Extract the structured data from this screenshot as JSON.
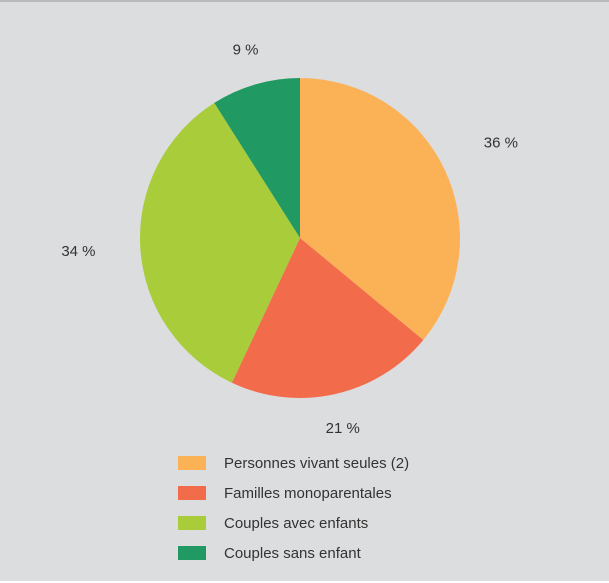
{
  "chart_data": {
    "type": "pie",
    "title": "",
    "start_angle_deg": 0,
    "direction": "clockwise",
    "slices": [
      {
        "label": "Personnes vivant seules (2)",
        "value": 36,
        "display": "36 %",
        "color": "#fbb257"
      },
      {
        "label": "Familles monoparentales",
        "value": 21,
        "display": "21 %",
        "color": "#f26b4b"
      },
      {
        "label": "Couples avec enfants",
        "value": 34,
        "display": "34 %",
        "color": "#a9cd3a"
      },
      {
        "label": "Couples sans enfant",
        "value": 9,
        "display": "9 %",
        "color": "#219962"
      }
    ],
    "legend_position": "bottom"
  }
}
